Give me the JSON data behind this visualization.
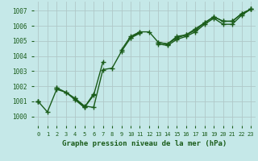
{
  "title": "Graphe pression niveau de la mer (hPa)",
  "bg_color": "#c5e8e8",
  "grid_color": "#b0c8c8",
  "line_color": "#1a5c1a",
  "ylim": [
    999.4,
    1007.6
  ],
  "xlim": [
    -0.5,
    23.5
  ],
  "yticks": [
    1000,
    1001,
    1002,
    1003,
    1004,
    1005,
    1006,
    1007
  ],
  "xticks": [
    0,
    1,
    2,
    3,
    4,
    5,
    6,
    7,
    8,
    9,
    10,
    11,
    12,
    13,
    14,
    15,
    16,
    17,
    18,
    19,
    20,
    21,
    22,
    23
  ],
  "series": [
    [
      1001.0,
      1000.3,
      1001.8,
      1001.6,
      1001.2,
      1000.7,
      1000.6,
      1003.1,
      1003.2,
      1004.3,
      1005.2,
      1005.6,
      1005.6,
      1004.9,
      1004.8,
      1005.3,
      1005.4,
      1005.8,
      1006.2,
      1006.6,
      1006.3,
      1006.3,
      1006.8,
      1007.1
    ],
    [
      1001.0,
      null,
      1001.9,
      1001.6,
      1001.1,
      1000.6,
      1001.4,
      1003.6,
      null,
      null,
      1005.2,
      1005.5,
      null,
      1004.8,
      1004.7,
      1005.1,
      1005.3,
      1005.6,
      1006.1,
      1006.5,
      1006.1,
      1006.1,
      1006.7,
      1007.1
    ],
    [
      1001.0,
      null,
      1001.9,
      null,
      1001.2,
      1000.6,
      1001.5,
      null,
      null,
      1004.4,
      1005.3,
      1005.6,
      null,
      1004.9,
      1004.8,
      1005.2,
      1005.4,
      1005.7,
      1006.2,
      1006.6,
      1006.3,
      1006.3,
      1006.8,
      1007.1
    ]
  ],
  "marker_size": 4,
  "line_width": 1.0,
  "title_fontsize": 6.5,
  "tick_fontsize": 5.5
}
